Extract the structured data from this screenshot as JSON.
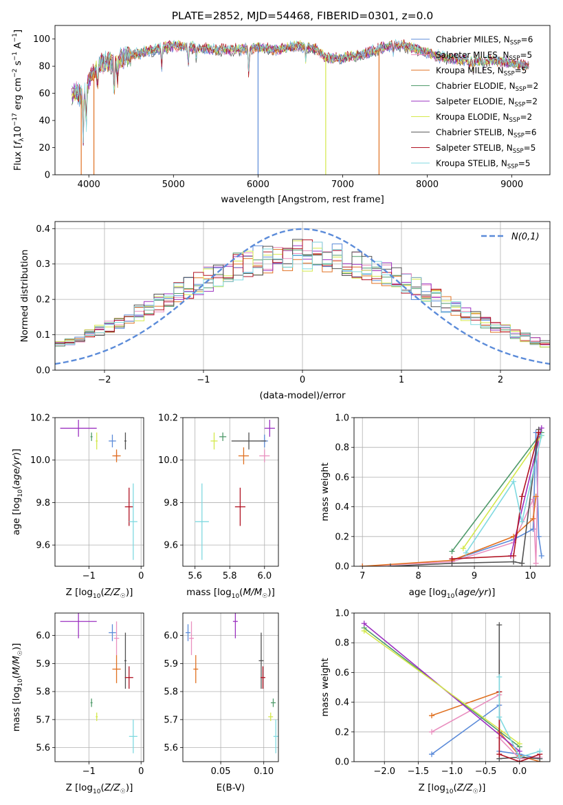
{
  "figure_title": "PLATE=2852, MJD=54468, FIBERID=0301, z=0.0",
  "models": [
    {
      "name": "Chabrier MILES, N_SSP=6",
      "label_main": "Chabrier MILES, N",
      "label_sub": "SSP",
      "label_tail": "=6",
      "color": "#5b8bd9"
    },
    {
      "name": "Salpeter MILES, N_SSP=5",
      "label_main": "Salpeter MILES, N",
      "label_sub": "SSP",
      "label_tail": "=5",
      "color": "#e98fbf"
    },
    {
      "name": "Kroupa MILES, N_SSP=5",
      "label_main": "Kroupa MILES, N",
      "label_sub": "SSP",
      "label_tail": "=5",
      "color": "#e07020"
    },
    {
      "name": "Chabrier ELODIE, N_SSP=2",
      "label_main": "Chabrier ELODIE, N",
      "label_sub": "SSP",
      "label_tail": "=2",
      "color": "#4f9a6a"
    },
    {
      "name": "Salpeter ELODIE, N_SSP=2",
      "label_main": "Salpeter ELODIE, N",
      "label_sub": "SSP",
      "label_tail": "=2",
      "color": "#9b30c0"
    },
    {
      "name": "Kroupa ELODIE, N_SSP=2",
      "label_main": "Kroupa ELODIE, N",
      "label_sub": "SSP",
      "label_tail": "=2",
      "color": "#d4e84a"
    },
    {
      "name": "Chabrier STELIB, N_SSP=6",
      "label_main": "Chabrier STELIB, N",
      "label_sub": "SSP",
      "label_tail": "=6",
      "color": "#505050"
    },
    {
      "name": "Salpeter STELIB, N_SSP=5",
      "label_main": "Salpeter STELIB, N",
      "label_sub": "SSP",
      "label_tail": "=5",
      "color": "#b01020"
    },
    {
      "name": "Kroupa STELIB, N_SSP=5",
      "label_main": "Kroupa STELIB, N",
      "label_sub": "SSP",
      "label_tail": "=5",
      "color": "#7fd9e0"
    }
  ],
  "chart_data": [
    {
      "id": "spectrum",
      "type": "line",
      "xlabel": "wavelength [Angstrom, rest frame]",
      "ylabel": "Flux [f_λ 10^-17 erg cm^-2 s^-1 A^-1]",
      "xlim": [
        3600,
        9450
      ],
      "ylim": [
        0,
        110
      ],
      "xticks": [
        4000,
        5000,
        6000,
        7000,
        8000,
        9000
      ],
      "yticks": [
        0,
        20,
        40,
        60,
        80,
        100
      ],
      "grid": false,
      "legend": "top-right",
      "continuum": {
        "x": [
          3800,
          3850,
          3900,
          3950,
          4000,
          4050,
          4100,
          4200,
          4300,
          4400,
          4500,
          4700,
          4900,
          5000,
          5200,
          5500,
          5800,
          6000,
          6200,
          6500,
          6700,
          6800,
          7000,
          7200,
          7400,
          7600,
          7800,
          8000,
          8200,
          8400,
          8600,
          8800,
          9000,
          9200
        ],
        "y": [
          58,
          62,
          58,
          60,
          70,
          75,
          80,
          84,
          82,
          86,
          88,
          91,
          94,
          95,
          94,
          92,
          92,
          94,
          92,
          95,
          92,
          86,
          86,
          88,
          92,
          96,
          94,
          90,
          86,
          85,
          84,
          84,
          82,
          80
        ]
      },
      "dropouts": [
        {
          "x": 3910,
          "color": "#e07020"
        },
        {
          "x": 4060,
          "color": "#e07020"
        },
        {
          "x": 6000,
          "color": "#5b8bd9"
        },
        {
          "x": 6800,
          "color": "#d4e84a"
        },
        {
          "x": 7430,
          "color": "#e07020"
        }
      ]
    },
    {
      "id": "residuals",
      "type": "area",
      "xlabel": "(data-model)/error",
      "ylabel": "Normed distribution",
      "xlim": [
        -2.5,
        2.5
      ],
      "ylim": [
        0,
        0.42
      ],
      "xticks": [
        -2,
        -1,
        0,
        1,
        2
      ],
      "yticks": [
        0.0,
        0.1,
        0.2,
        0.3,
        0.4
      ],
      "grid": true,
      "legend": "top-right",
      "normal_label": "N(0,1)",
      "normal_color": "#5b8bd9",
      "bin_width": 0.1
    },
    {
      "id": "age-vs-Z",
      "type": "scatter",
      "xlabel": "Z [log10(Z/Z☉)]",
      "ylabel": "age [log10(age/yr)]",
      "xlim": [
        -1.65,
        0.05
      ],
      "ylim": [
        9.5,
        10.2
      ],
      "xticks": [
        -1,
        0
      ],
      "yticks": [
        9.6,
        9.8,
        10.0,
        10.2
      ],
      "grid": true,
      "points": [
        {
          "x": -0.55,
          "y": 10.09,
          "ex": 0.07,
          "ey": 0.03,
          "model": 0
        },
        {
          "x": -0.47,
          "y": 10.02,
          "ex": 0.05,
          "ey": 0.02,
          "model": 1
        },
        {
          "x": -0.47,
          "y": 10.02,
          "ex": 0.08,
          "ey": 0.03,
          "model": 2
        },
        {
          "x": -0.95,
          "y": 10.11,
          "ex": 0.02,
          "ey": 0.02,
          "model": 3
        },
        {
          "x": -1.2,
          "y": 10.15,
          "ex": 0.35,
          "ey": 0.04,
          "model": 4
        },
        {
          "x": -0.85,
          "y": 10.09,
          "ex": 0.02,
          "ey": 0.04,
          "model": 5
        },
        {
          "x": -0.3,
          "y": 10.09,
          "ex": 0.02,
          "ey": 0.04,
          "model": 6
        },
        {
          "x": -0.23,
          "y": 9.78,
          "ex": 0.08,
          "ey": 0.09,
          "model": 7
        },
        {
          "x": -0.15,
          "y": 9.71,
          "ex": 0.08,
          "ey": 0.18,
          "model": 8
        }
      ]
    },
    {
      "id": "age-vs-mass",
      "type": "scatter",
      "xlabel": "mass [log10(M/M☉)]",
      "ylabel": "",
      "xlim": [
        5.53,
        6.08
      ],
      "ylim": [
        9.5,
        10.2
      ],
      "xticks": [
        5.6,
        5.8,
        6.0
      ],
      "yticks": [
        9.6,
        9.8,
        10.0,
        10.2
      ],
      "grid": true,
      "points": [
        {
          "x": 6.0,
          "y": 10.09,
          "ex": 0.02,
          "ey": 0.03,
          "model": 0
        },
        {
          "x": 6.0,
          "y": 10.02,
          "ex": 0.03,
          "ey": 0.03,
          "model": 1
        },
        {
          "x": 5.88,
          "y": 10.02,
          "ex": 0.03,
          "ey": 0.04,
          "model": 2
        },
        {
          "x": 5.76,
          "y": 10.11,
          "ex": 0.02,
          "ey": 0.02,
          "model": 3
        },
        {
          "x": 6.03,
          "y": 10.15,
          "ex": 0.03,
          "ey": 0.04,
          "model": 4
        },
        {
          "x": 5.71,
          "y": 10.09,
          "ex": 0.02,
          "ey": 0.04,
          "model": 5
        },
        {
          "x": 5.91,
          "y": 10.09,
          "ex": 0.1,
          "ey": 0.04,
          "model": 6
        },
        {
          "x": 5.86,
          "y": 9.78,
          "ex": 0.03,
          "ey": 0.09,
          "model": 7
        },
        {
          "x": 5.64,
          "y": 9.71,
          "ex": 0.04,
          "ey": 0.18,
          "model": 8
        }
      ]
    },
    {
      "id": "massweight-vs-age",
      "type": "line",
      "xlabel": "age [log10(age/yr)]",
      "ylabel": "mass weight",
      "xlim": [
        6.85,
        10.35
      ],
      "ylim": [
        0,
        1.0
      ],
      "xticks": [
        7,
        8,
        9,
        10
      ],
      "yticks": [
        0.0,
        0.2,
        0.4,
        0.6,
        0.8,
        1.0
      ],
      "grid": true,
      "series": [
        {
          "model": 0,
          "x": [
            8.6,
            9.7,
            10.05,
            10.1,
            10.15,
            10.2
          ],
          "y": [
            0.04,
            0.18,
            0.25,
            0.9,
            0.2,
            0.07
          ]
        },
        {
          "model": 1,
          "x": [
            7.0,
            8.6,
            9.7,
            10.05,
            10.1,
            10.15
          ],
          "y": [
            0.0,
            0.03,
            0.16,
            0.45,
            0.02,
            0.9
          ]
        },
        {
          "model": 2,
          "x": [
            7.0,
            8.6,
            9.7,
            10.05,
            10.1
          ],
          "y": [
            0.0,
            0.04,
            0.2,
            0.32,
            0.47
          ]
        },
        {
          "model": 3,
          "x": [
            8.6,
            10.2
          ],
          "y": [
            0.1,
            0.9
          ]
        },
        {
          "model": 4,
          "x": [
            9.65,
            10.2
          ],
          "y": [
            0.07,
            0.93
          ]
        },
        {
          "model": 5,
          "x": [
            8.8,
            10.2
          ],
          "y": [
            0.12,
            0.88
          ]
        },
        {
          "model": 6,
          "x": [
            7.5,
            8.6,
            9.7,
            9.85,
            10.15
          ],
          "y": [
            0.0,
            0.02,
            0.03,
            0.02,
            0.92
          ]
        },
        {
          "model": 7,
          "x": [
            8.6,
            9.7,
            9.85,
            10.15
          ],
          "y": [
            0.05,
            0.07,
            0.47,
            0.9
          ]
        },
        {
          "model": 8,
          "x": [
            8.85,
            9.7,
            9.85,
            10.2
          ],
          "y": [
            0.09,
            0.57,
            0.3,
            0.88
          ]
        }
      ]
    },
    {
      "id": "mass-vs-Z",
      "type": "scatter",
      "xlabel": "Z [log10(Z/Z☉)]",
      "ylabel": "mass [log10(M/M☉)]",
      "xlim": [
        -1.65,
        0.05
      ],
      "ylim": [
        5.55,
        6.08
      ],
      "xticks": [
        -1,
        0
      ],
      "yticks": [
        5.6,
        5.7,
        5.8,
        5.9,
        6.0
      ],
      "grid": true,
      "points": [
        {
          "x": -0.55,
          "y": 6.01,
          "ex": 0.07,
          "ey": 0.03,
          "model": 0
        },
        {
          "x": -0.47,
          "y": 5.99,
          "ex": 0.05,
          "ey": 0.06,
          "model": 1
        },
        {
          "x": -0.47,
          "y": 5.88,
          "ex": 0.08,
          "ey": 0.05,
          "model": 2
        },
        {
          "x": -0.95,
          "y": 5.76,
          "ex": 0.02,
          "ey": 0.015,
          "model": 3
        },
        {
          "x": -1.2,
          "y": 6.05,
          "ex": 0.35,
          "ey": 0.06,
          "model": 4
        },
        {
          "x": -0.85,
          "y": 5.71,
          "ex": 0.02,
          "ey": 0.015,
          "model": 5
        },
        {
          "x": -0.3,
          "y": 5.91,
          "ex": 0.02,
          "ey": 0.1,
          "model": 6
        },
        {
          "x": -0.23,
          "y": 5.85,
          "ex": 0.08,
          "ey": 0.04,
          "model": 7
        },
        {
          "x": -0.15,
          "y": 5.64,
          "ex": 0.08,
          "ey": 0.06,
          "model": 8
        }
      ]
    },
    {
      "id": "mass-vs-EBV",
      "type": "scatter",
      "xlabel": "E(B-V)",
      "ylabel": "",
      "xlim": [
        0.006,
        0.117
      ],
      "ylim": [
        5.55,
        6.08
      ],
      "xticks": [
        0.05,
        0.1
      ],
      "yticks": [
        5.6,
        5.7,
        5.8,
        5.9,
        6.0
      ],
      "grid": true,
      "points": [
        {
          "x": 0.012,
          "y": 6.01,
          "ey": 0.03,
          "model": 0
        },
        {
          "x": 0.016,
          "y": 5.99,
          "ey": 0.06,
          "model": 1
        },
        {
          "x": 0.021,
          "y": 5.88,
          "ey": 0.05,
          "model": 2
        },
        {
          "x": 0.111,
          "y": 5.76,
          "ey": 0.015,
          "model": 3
        },
        {
          "x": 0.067,
          "y": 6.05,
          "ey": 0.06,
          "model": 4
        },
        {
          "x": 0.108,
          "y": 5.71,
          "ey": 0.015,
          "model": 5
        },
        {
          "x": 0.097,
          "y": 5.91,
          "ey": 0.1,
          "model": 6
        },
        {
          "x": 0.099,
          "y": 5.85,
          "ey": 0.04,
          "model": 7
        },
        {
          "x": 0.114,
          "y": 5.64,
          "ey": 0.06,
          "model": 8
        }
      ]
    },
    {
      "id": "massweight-vs-Z",
      "type": "line",
      "xlabel": "Z [log10(Z/Z☉)]",
      "ylabel": "mass weight",
      "xlim": [
        -2.45,
        0.45
      ],
      "ylim": [
        0,
        1.0
      ],
      "xticks": [
        -2.0,
        -1.5,
        -1.0,
        -0.5,
        0.0
      ],
      "yticks": [
        0.0,
        0.2,
        0.4,
        0.6,
        0.8,
        1.0
      ],
      "grid": true,
      "series": [
        {
          "model": 0,
          "x": [
            -1.3,
            -0.3,
            -0.3,
            0.0,
            0.3
          ],
          "y": [
            0.05,
            0.38,
            0.07,
            0.05,
            0.02
          ]
        },
        {
          "model": 1,
          "x": [
            -1.3,
            -0.3,
            -0.3,
            0.0,
            0.3
          ],
          "y": [
            0.2,
            0.45,
            0.16,
            0.02,
            0.03
          ]
        },
        {
          "model": 2,
          "x": [
            -1.3,
            -0.3,
            -0.3,
            0.0,
            0.3
          ],
          "y": [
            0.31,
            0.47,
            0.2,
            0.04,
            0.0
          ]
        },
        {
          "model": 3,
          "x": [
            -2.3,
            0.0
          ],
          "y": [
            0.9,
            0.1
          ]
        },
        {
          "model": 4,
          "x": [
            -2.3,
            0.0
          ],
          "y": [
            0.93,
            0.07
          ]
        },
        {
          "model": 5,
          "x": [
            -2.3,
            0.0
          ],
          "y": [
            0.88,
            0.12
          ]
        },
        {
          "model": 6,
          "x": [
            -0.3,
            -0.3,
            0.0,
            0.3
          ],
          "y": [
            0.92,
            0.02,
            0.03,
            0.02
          ]
        },
        {
          "model": 7,
          "x": [
            -0.3,
            -0.3,
            0.0,
            0.3
          ],
          "y": [
            0.47,
            0.05,
            0.0,
            0.05
          ]
        },
        {
          "model": 8,
          "x": [
            -0.3,
            -0.3,
            0.0,
            0.3
          ],
          "y": [
            0.57,
            0.3,
            0.03,
            0.07
          ]
        }
      ]
    }
  ]
}
